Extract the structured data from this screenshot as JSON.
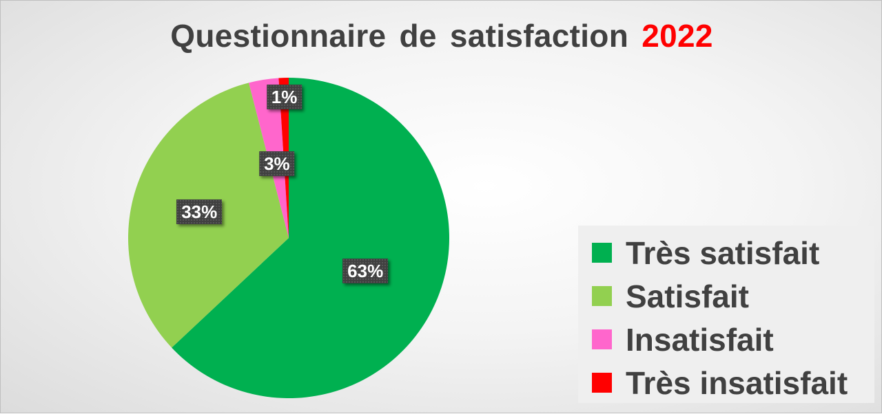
{
  "chart_data": {
    "type": "pie",
    "title": "Questionnaire de satisfaction",
    "title_highlight": "2022",
    "title_highlight_color": "#ff0000",
    "categories": [
      "Très satisfait",
      "Satisfait",
      "Insatisfait",
      "Très insatisfait"
    ],
    "values": [
      63,
      33,
      3,
      1
    ],
    "data_labels": [
      "63%",
      "33%",
      "3%",
      "1%"
    ],
    "colors": [
      "#00b050",
      "#92d050",
      "#ff66cc",
      "#ff0000"
    ],
    "start_angle": "12 o'clock",
    "direction": "clockwise",
    "legend_position": "right"
  }
}
